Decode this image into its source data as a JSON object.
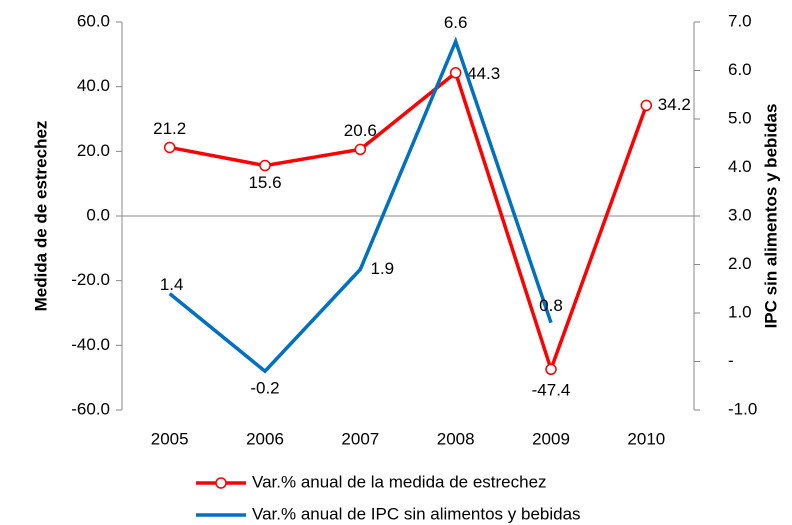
{
  "chart_data": {
    "type": "line",
    "categories": [
      "2005",
      "2006",
      "2007",
      "2008",
      "2009",
      "2010"
    ],
    "y_label": "Medida de de estrechez",
    "y2_label": "IPC sin alimentos y bebidas",
    "ylim": [
      -60,
      60
    ],
    "yticks": [
      {
        "value": 60,
        "label": "60.0"
      },
      {
        "value": 40,
        "label": "40.0"
      },
      {
        "value": 20,
        "label": "20.0"
      },
      {
        "value": 0,
        "label": "0.0"
      },
      {
        "value": -20,
        "label": "-20.0"
      },
      {
        "value": -40,
        "label": "-40.0"
      },
      {
        "value": -60,
        "label": "-60.0"
      }
    ],
    "y2lim": [
      -1,
      7
    ],
    "y2ticks": [
      {
        "value": 7,
        "label": "7.0"
      },
      {
        "value": 6,
        "label": "6.0"
      },
      {
        "value": 5,
        "label": "5.0"
      },
      {
        "value": 4,
        "label": "4.0"
      },
      {
        "value": 3,
        "label": "3.0"
      },
      {
        "value": 2,
        "label": "2.0"
      },
      {
        "value": 1,
        "label": "1.0"
      },
      {
        "value": 0,
        "label": "-"
      },
      {
        "value": -1,
        "label": "-1.0"
      }
    ],
    "legend": "bottom",
    "series": [
      {
        "name": "Var.% anual de la medida de estrechez",
        "color": "#ff0000",
        "marker": "circle",
        "values": [
          21.2,
          15.6,
          20.6,
          44.3,
          -47.4,
          34.2
        ]
      },
      {
        "name": "Var.% anual de IPC sin alimentos y bebidas",
        "color": "#0070c0",
        "axis": "y2",
        "label_color": "#1f3864",
        "values": [
          1.4,
          -0.2,
          1.9,
          6.6,
          0.8,
          null
        ]
      }
    ]
  }
}
